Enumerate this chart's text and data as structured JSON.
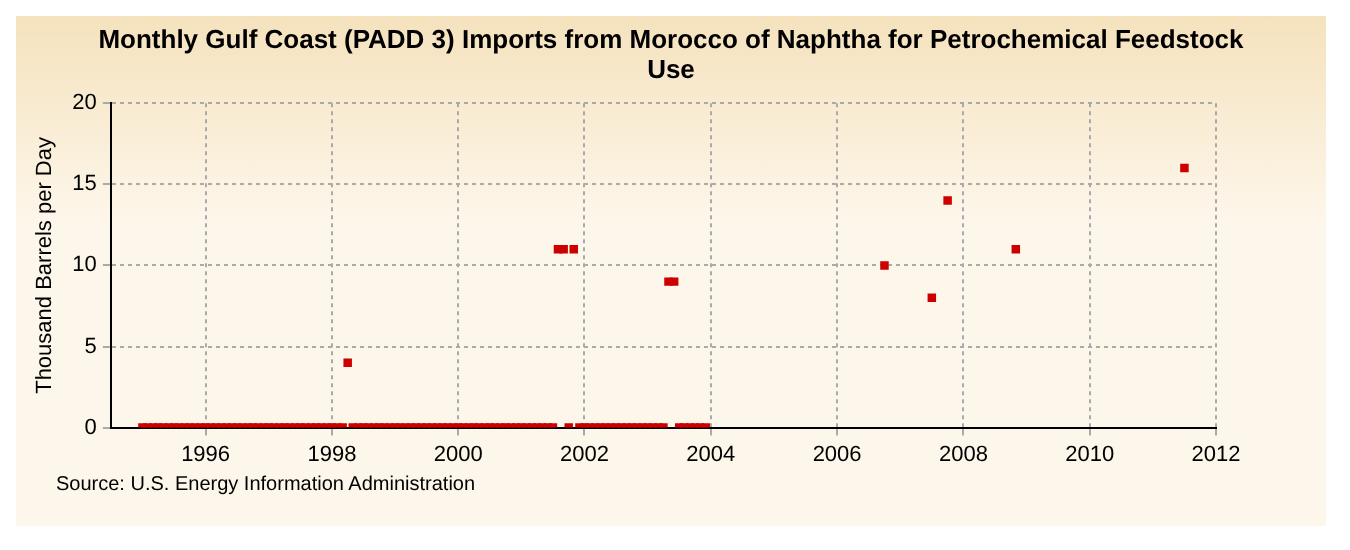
{
  "chart_data": {
    "type": "scatter",
    "title": "Monthly Gulf Coast (PADD 3) Imports from Morocco of Naphtha for Petrochemical Feedstock Use",
    "ylabel": "Thousand Barrels per Day",
    "annotations": [
      "Source: U.S. Energy Information Administration"
    ],
    "series": [
      {
        "color": "#cc0000",
        "x": [
          1995,
          1995.08,
          1995.17,
          1995.25,
          1995.33,
          1995.42,
          1995.5,
          1995.58,
          1995.67,
          1995.75,
          1995.83,
          1995.92,
          1996,
          1996.08,
          1996.17,
          1996.25,
          1996.33,
          1996.42,
          1996.5,
          1996.58,
          1996.67,
          1996.75,
          1996.83,
          1996.92,
          1997,
          1997.08,
          1997.17,
          1997.25,
          1997.33,
          1997.42,
          1997.5,
          1997.58,
          1997.67,
          1997.75,
          1997.83,
          1997.92,
          1998,
          1998.08,
          1998.17,
          1998.25,
          1998.33,
          1998.42,
          1998.5,
          1998.58,
          1998.67,
          1998.75,
          1998.83,
          1998.92,
          1999,
          1999.08,
          1999.17,
          1999.25,
          1999.33,
          1999.42,
          1999.5,
          1999.58,
          1999.67,
          1999.75,
          1999.83,
          1999.92,
          2000,
          2000.08,
          2000.17,
          2000.25,
          2000.33,
          2000.42,
          2000.5,
          2000.58,
          2000.67,
          2000.75,
          2000.83,
          2000.92,
          2001,
          2001.08,
          2001.17,
          2001.25,
          2001.33,
          2001.42,
          2001.5,
          2001.58,
          2001.67,
          2001.75,
          2001.83,
          2001.92,
          2002,
          2002.08,
          2002.17,
          2002.25,
          2002.33,
          2002.42,
          2002.5,
          2002.58,
          2002.67,
          2002.75,
          2002.83,
          2002.92,
          2003,
          2003.08,
          2003.17,
          2003.25,
          2003.33,
          2003.42,
          2003.5,
          2003.58,
          2003.67,
          2003.75,
          2003.83,
          2003.92,
          2006.75,
          2007.5,
          2007.75,
          2008.83,
          2011.5
        ],
        "values": [
          0,
          0,
          0,
          0,
          0,
          0,
          0,
          0,
          0,
          0,
          0,
          0,
          0,
          0,
          0,
          0,
          0,
          0,
          0,
          0,
          0,
          0,
          0,
          0,
          0,
          0,
          0,
          0,
          0,
          0,
          0,
          0,
          0,
          0,
          0,
          0,
          0,
          0,
          0,
          4,
          0,
          0,
          0,
          0,
          0,
          0,
          0,
          0,
          0,
          0,
          0,
          0,
          0,
          0,
          0,
          0,
          0,
          0,
          0,
          0,
          0,
          0,
          0,
          0,
          0,
          0,
          0,
          0,
          0,
          0,
          0,
          0,
          0,
          0,
          0,
          0,
          0,
          0,
          0,
          11,
          11,
          0,
          11,
          0,
          0,
          0,
          0,
          0,
          0,
          0,
          0,
          0,
          0,
          0,
          0,
          0,
          0,
          0,
          0,
          0,
          9,
          9,
          0,
          0,
          0,
          0,
          0,
          0,
          10,
          8,
          14,
          11,
          16
        ]
      }
    ],
    "xlim": [
      1994.5,
      2012
    ],
    "xticks": [
      1996,
      1998,
      2000,
      2002,
      2004,
      2006,
      2008,
      2010,
      2012
    ],
    "ylim": [
      0,
      20
    ],
    "yticks": [
      0,
      5,
      10,
      15,
      20
    ],
    "grid": true,
    "marker": "square",
    "legend": false
  }
}
